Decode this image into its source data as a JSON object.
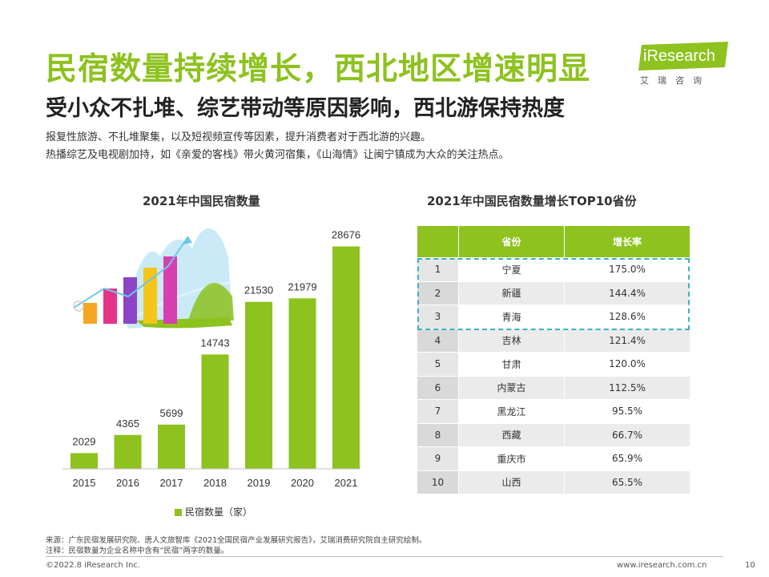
{
  "header": {
    "title": "民宿数量持续增长，西北地区增速明显",
    "subtitle": "受小众不扎堆、综艺带动等原因影响，西北游保持热度",
    "desc_lines": [
      "报复性旅游、不扎堆聚集，以及短视频宣传等因素，提升消费者对于西北游的兴趣。",
      "热播综艺及电视剧加持，如《亲爱的客栈》带火黄河宿集，《山海情》让闽宁镇成为大众的关注热点。"
    ]
  },
  "logo": {
    "brand": "iResearch",
    "cn": "艾瑞咨询"
  },
  "colors": {
    "accent": "#8DC21F",
    "highlight_border": "#3AB0C8"
  },
  "chart_data": [
    {
      "type": "bar",
      "title": "2021年中国民宿数量",
      "categories": [
        "2015",
        "2016",
        "2017",
        "2018",
        "2019",
        "2020",
        "2021"
      ],
      "series": [
        {
          "name": "民宿数量（家）",
          "values": [
            2029,
            4365,
            5699,
            14743,
            21530,
            21979,
            28676
          ]
        }
      ],
      "ylim": [
        0,
        31000
      ],
      "legend": "bottom",
      "grid": false
    },
    {
      "type": "table",
      "title": "2021年中国民宿数量增长TOP10省份",
      "columns": [
        "",
        "省份",
        "增长率"
      ],
      "rows": [
        [
          "1",
          "宁夏",
          "175.0%"
        ],
        [
          "2",
          "新疆",
          "144.4%"
        ],
        [
          "3",
          "青海",
          "128.6%"
        ],
        [
          "4",
          "吉林",
          "121.4%"
        ],
        [
          "5",
          "甘肃",
          "120.0%"
        ],
        [
          "6",
          "内蒙古",
          "112.5%"
        ],
        [
          "7",
          "黑龙江",
          "95.5%"
        ],
        [
          "8",
          "西藏",
          "66.7%"
        ],
        [
          "9",
          "重庆市",
          "65.9%"
        ],
        [
          "10",
          "山西",
          "65.5%"
        ]
      ]
    }
  ],
  "notes": {
    "source": "来源：广东民宿发展研究院、唐人文旅智库《2021全国民宿产业发展研究报告》，艾瑞消费研究院自主研究绘制。",
    "annotation": "注释：民宿数量为企业名称中含有“民宿”两字的数量。"
  },
  "footer": {
    "copyright": "©2022.8 iResearch Inc.",
    "website": "www.iresearch.com.cn",
    "page": "10"
  }
}
